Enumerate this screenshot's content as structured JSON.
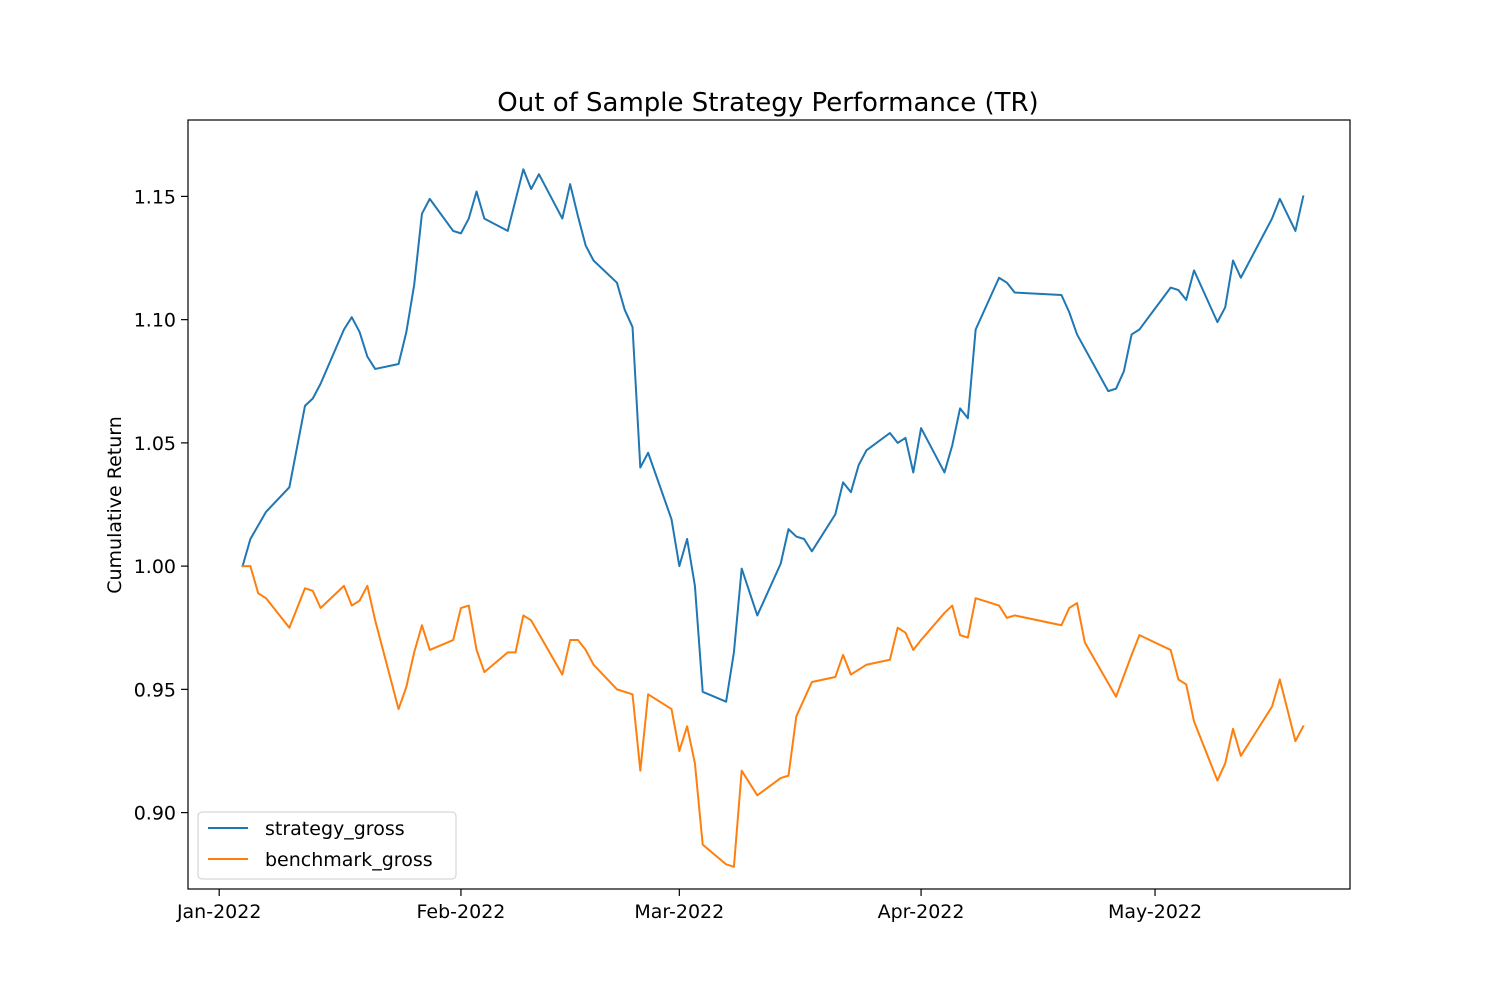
{
  "chart_data": {
    "type": "line",
    "title": "Out of Sample Strategy Performance (TR)",
    "xlabel": "",
    "ylabel": "Cumulative Return",
    "x_ticks": [
      "Jan-2022",
      "Feb-2022",
      "Mar-2022",
      "Apr-2022",
      "May-2022"
    ],
    "x_tick_dates": [
      "2022-01-01",
      "2022-02-01",
      "2022-03-01",
      "2022-04-01",
      "2022-05-01"
    ],
    "y_ticks": [
      "0.90",
      "0.95",
      "1.00",
      "1.05",
      "1.10",
      "1.15"
    ],
    "y_tick_values": [
      0.9,
      0.95,
      1.0,
      1.05,
      1.1,
      1.15
    ],
    "xlim": [
      "2021-12-28",
      "2022-05-26"
    ],
    "ylim": [
      0.869,
      1.181
    ],
    "grid": false,
    "legend_position": "lower-left",
    "series": [
      {
        "name": "strategy_gross",
        "color": "#1f77b4",
        "points": [
          [
            "2022-01-04",
            1.0
          ],
          [
            "2022-01-05",
            1.011
          ],
          [
            "2022-01-07",
            1.022
          ],
          [
            "2022-01-10",
            1.032
          ],
          [
            "2022-01-12",
            1.065
          ],
          [
            "2022-01-13",
            1.068
          ],
          [
            "2022-01-14",
            1.074
          ],
          [
            "2022-01-17",
            1.096
          ],
          [
            "2022-01-18",
            1.101
          ],
          [
            "2022-01-19",
            1.095
          ],
          [
            "2022-01-20",
            1.085
          ],
          [
            "2022-01-21",
            1.08
          ],
          [
            "2022-01-24",
            1.082
          ],
          [
            "2022-01-25",
            1.095
          ],
          [
            "2022-01-26",
            1.114
          ],
          [
            "2022-01-27",
            1.143
          ],
          [
            "2022-01-28",
            1.149
          ],
          [
            "2022-01-31",
            1.136
          ],
          [
            "2022-02-01",
            1.135
          ],
          [
            "2022-02-02",
            1.141
          ],
          [
            "2022-02-03",
            1.152
          ],
          [
            "2022-02-04",
            1.141
          ],
          [
            "2022-02-07",
            1.136
          ],
          [
            "2022-02-09",
            1.161
          ],
          [
            "2022-02-10",
            1.153
          ],
          [
            "2022-02-11",
            1.159
          ],
          [
            "2022-02-14",
            1.141
          ],
          [
            "2022-02-15",
            1.155
          ],
          [
            "2022-02-16",
            1.142
          ],
          [
            "2022-02-17",
            1.13
          ],
          [
            "2022-02-18",
            1.124
          ],
          [
            "2022-02-21",
            1.115
          ],
          [
            "2022-02-22",
            1.104
          ],
          [
            "2022-02-23",
            1.097
          ],
          [
            "2022-02-24",
            1.04
          ],
          [
            "2022-02-25",
            1.046
          ],
          [
            "2022-02-28",
            1.019
          ],
          [
            "2022-03-01",
            1.0
          ],
          [
            "2022-03-02",
            1.011
          ],
          [
            "2022-03-03",
            0.992
          ],
          [
            "2022-03-04",
            0.949
          ],
          [
            "2022-03-07",
            0.945
          ],
          [
            "2022-03-08",
            0.965
          ],
          [
            "2022-03-09",
            0.999
          ],
          [
            "2022-03-11",
            0.98
          ],
          [
            "2022-03-14",
            1.001
          ],
          [
            "2022-03-15",
            1.015
          ],
          [
            "2022-03-16",
            1.012
          ],
          [
            "2022-03-17",
            1.011
          ],
          [
            "2022-03-18",
            1.006
          ],
          [
            "2022-03-21",
            1.021
          ],
          [
            "2022-03-22",
            1.034
          ],
          [
            "2022-03-23",
            1.03
          ],
          [
            "2022-03-24",
            1.041
          ],
          [
            "2022-03-25",
            1.047
          ],
          [
            "2022-03-28",
            1.054
          ],
          [
            "2022-03-29",
            1.05
          ],
          [
            "2022-03-30",
            1.052
          ],
          [
            "2022-03-31",
            1.038
          ],
          [
            "2022-04-01",
            1.056
          ],
          [
            "2022-04-04",
            1.038
          ],
          [
            "2022-04-05",
            1.049
          ],
          [
            "2022-04-06",
            1.064
          ],
          [
            "2022-04-07",
            1.06
          ],
          [
            "2022-04-08",
            1.096
          ],
          [
            "2022-04-11",
            1.117
          ],
          [
            "2022-04-12",
            1.115
          ],
          [
            "2022-04-13",
            1.111
          ],
          [
            "2022-04-19",
            1.11
          ],
          [
            "2022-04-20",
            1.103
          ],
          [
            "2022-04-21",
            1.094
          ],
          [
            "2022-04-25",
            1.071
          ],
          [
            "2022-04-26",
            1.072
          ],
          [
            "2022-04-27",
            1.079
          ],
          [
            "2022-04-28",
            1.094
          ],
          [
            "2022-04-29",
            1.096
          ],
          [
            "2022-05-03",
            1.113
          ],
          [
            "2022-05-04",
            1.112
          ],
          [
            "2022-05-05",
            1.108
          ],
          [
            "2022-05-06",
            1.12
          ],
          [
            "2022-05-09",
            1.099
          ],
          [
            "2022-05-10",
            1.105
          ],
          [
            "2022-05-11",
            1.124
          ],
          [
            "2022-05-12",
            1.117
          ],
          [
            "2022-05-16",
            1.141
          ],
          [
            "2022-05-17",
            1.149
          ],
          [
            "2022-05-19",
            1.136
          ],
          [
            "2022-05-20",
            1.15
          ]
        ]
      },
      {
        "name": "benchmark_gross",
        "color": "#ff7f0e",
        "points": [
          [
            "2022-01-04",
            1.0
          ],
          [
            "2022-01-05",
            1.0
          ],
          [
            "2022-01-06",
            0.989
          ],
          [
            "2022-01-07",
            0.987
          ],
          [
            "2022-01-10",
            0.975
          ],
          [
            "2022-01-12",
            0.991
          ],
          [
            "2022-01-13",
            0.99
          ],
          [
            "2022-01-14",
            0.983
          ],
          [
            "2022-01-17",
            0.992
          ],
          [
            "2022-01-18",
            0.984
          ],
          [
            "2022-01-19",
            0.986
          ],
          [
            "2022-01-20",
            0.992
          ],
          [
            "2022-01-21",
            0.978
          ],
          [
            "2022-01-24",
            0.942
          ],
          [
            "2022-01-25",
            0.951
          ],
          [
            "2022-01-26",
            0.965
          ],
          [
            "2022-01-27",
            0.976
          ],
          [
            "2022-01-28",
            0.966
          ],
          [
            "2022-01-31",
            0.97
          ],
          [
            "2022-02-01",
            0.983
          ],
          [
            "2022-02-02",
            0.984
          ],
          [
            "2022-02-03",
            0.966
          ],
          [
            "2022-02-04",
            0.957
          ],
          [
            "2022-02-07",
            0.965
          ],
          [
            "2022-02-08",
            0.965
          ],
          [
            "2022-02-09",
            0.98
          ],
          [
            "2022-02-10",
            0.978
          ],
          [
            "2022-02-14",
            0.956
          ],
          [
            "2022-02-15",
            0.97
          ],
          [
            "2022-02-16",
            0.97
          ],
          [
            "2022-02-17",
            0.966
          ],
          [
            "2022-02-18",
            0.96
          ],
          [
            "2022-02-21",
            0.95
          ],
          [
            "2022-02-23",
            0.948
          ],
          [
            "2022-02-24",
            0.917
          ],
          [
            "2022-02-25",
            0.948
          ],
          [
            "2022-02-28",
            0.942
          ],
          [
            "2022-03-01",
            0.925
          ],
          [
            "2022-03-02",
            0.935
          ],
          [
            "2022-03-03",
            0.92
          ],
          [
            "2022-03-04",
            0.887
          ],
          [
            "2022-03-07",
            0.879
          ],
          [
            "2022-03-08",
            0.878
          ],
          [
            "2022-03-09",
            0.917
          ],
          [
            "2022-03-11",
            0.907
          ],
          [
            "2022-03-14",
            0.914
          ],
          [
            "2022-03-15",
            0.915
          ],
          [
            "2022-03-16",
            0.939
          ],
          [
            "2022-03-18",
            0.953
          ],
          [
            "2022-03-21",
            0.955
          ],
          [
            "2022-03-22",
            0.964
          ],
          [
            "2022-03-23",
            0.956
          ],
          [
            "2022-03-25",
            0.96
          ],
          [
            "2022-03-28",
            0.962
          ],
          [
            "2022-03-29",
            0.975
          ],
          [
            "2022-03-30",
            0.973
          ],
          [
            "2022-03-31",
            0.966
          ],
          [
            "2022-04-01",
            0.97
          ],
          [
            "2022-04-04",
            0.981
          ],
          [
            "2022-04-05",
            0.984
          ],
          [
            "2022-04-06",
            0.972
          ],
          [
            "2022-04-07",
            0.971
          ],
          [
            "2022-04-08",
            0.987
          ],
          [
            "2022-04-11",
            0.984
          ],
          [
            "2022-04-12",
            0.979
          ],
          [
            "2022-04-13",
            0.98
          ],
          [
            "2022-04-19",
            0.976
          ],
          [
            "2022-04-20",
            0.983
          ],
          [
            "2022-04-21",
            0.985
          ],
          [
            "2022-04-22",
            0.969
          ],
          [
            "2022-04-26",
            0.947
          ],
          [
            "2022-04-28",
            0.964
          ],
          [
            "2022-04-29",
            0.972
          ],
          [
            "2022-05-03",
            0.966
          ],
          [
            "2022-05-04",
            0.954
          ],
          [
            "2022-05-05",
            0.952
          ],
          [
            "2022-05-06",
            0.937
          ],
          [
            "2022-05-09",
            0.913
          ],
          [
            "2022-05-10",
            0.92
          ],
          [
            "2022-05-11",
            0.934
          ],
          [
            "2022-05-12",
            0.923
          ],
          [
            "2022-05-16",
            0.943
          ],
          [
            "2022-05-17",
            0.954
          ],
          [
            "2022-05-19",
            0.929
          ],
          [
            "2022-05-20",
            0.935
          ]
        ]
      }
    ]
  }
}
